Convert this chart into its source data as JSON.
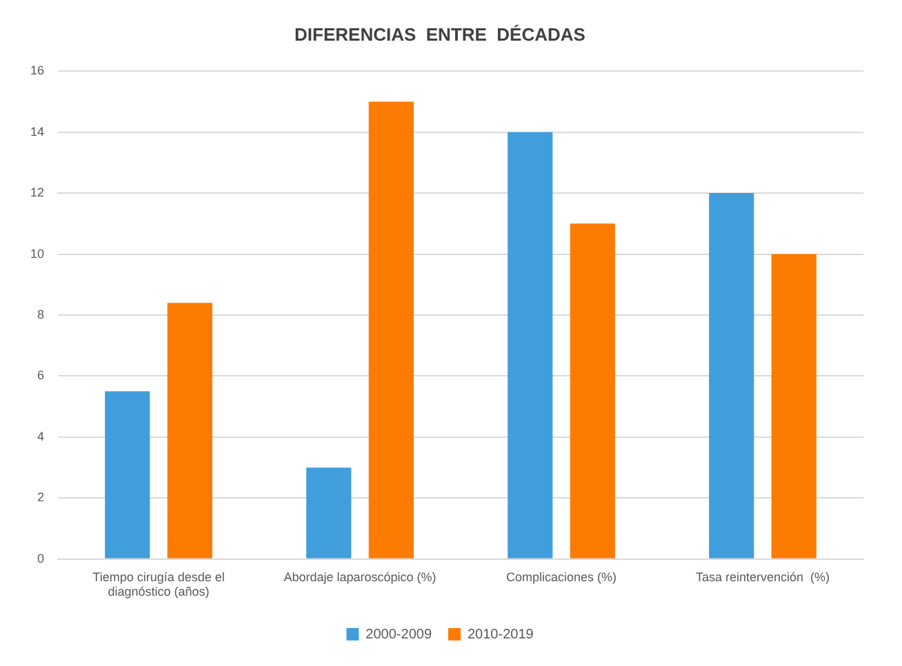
{
  "chart_data": {
    "type": "bar",
    "title": "DIFERENCIAS  ENTRE  DÉCADAS",
    "categories": [
      "Tiempo cirugía desde el diagnóstico (años)",
      "Abordaje laparoscópico (%)",
      "Complicaciones (%)",
      "Tasa reintervención  (%)"
    ],
    "series": [
      {
        "name": "2000-2009",
        "color": "#419edc",
        "values": [
          5.5,
          3,
          14,
          12
        ]
      },
      {
        "name": "2010-2019",
        "color": "#fd7b02",
        "values": [
          8.4,
          15,
          11,
          10
        ]
      }
    ],
    "ylim": [
      0,
      16
    ],
    "yticks": [
      0,
      2,
      4,
      6,
      8,
      10,
      12,
      14,
      16
    ],
    "grid": "y",
    "legend": "bottom"
  }
}
